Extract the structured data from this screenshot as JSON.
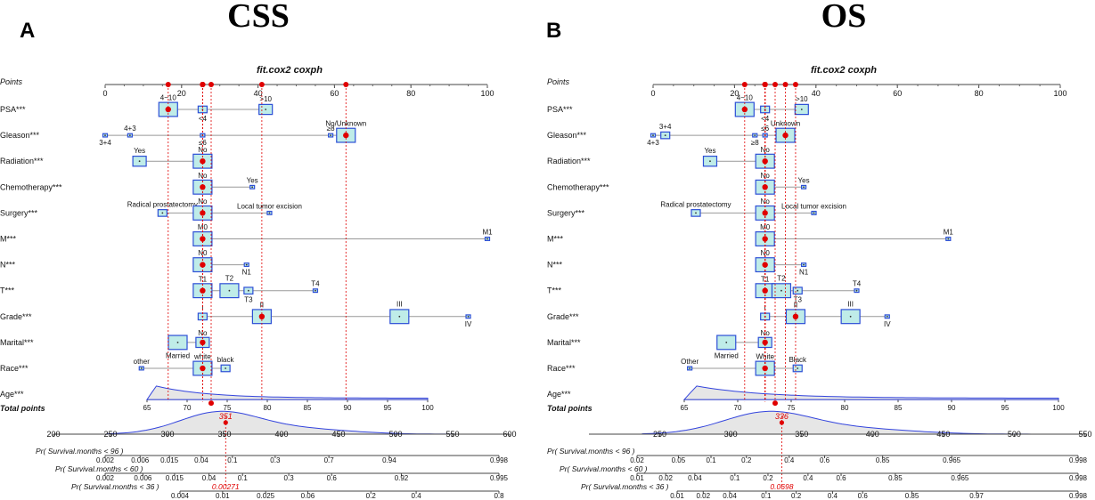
{
  "chart_data": [
    {
      "type": "nomogram",
      "panel": "A",
      "title": "CSS",
      "subtitle": "fit.cox2 coxph",
      "points_label": "Points",
      "points_ticks": [
        "0",
        "20",
        "40",
        "60",
        "80",
        "100"
      ],
      "points_max": 100,
      "total_label": "Total points",
      "total_ticks": [
        "200",
        "250",
        "300",
        "350",
        "400",
        "450",
        "500",
        "550",
        "600"
      ],
      "total_range": [
        200,
        600
      ],
      "total_value": 351,
      "total_value_label": "351",
      "prob_value_label": "0.00271",
      "probability_axes": [
        {
          "label": "Pr( Survival.months < 96 )",
          "ticks": [
            "0.002",
            "0.006",
            "0.015",
            "0.04",
            "0.1",
            "0.3",
            "0.7",
            "0.94",
            "0.998"
          ]
        },
        {
          "label": "Pr( Survival.months < 60 )",
          "ticks": [
            "0.002",
            "0.006",
            "0.015",
            "0.04",
            "0.1",
            "0.3",
            "0.6",
            "0.92",
            "0.995"
          ]
        },
        {
          "label": "Pr( Survival.months < 36 )",
          "ticks": [
            "0.004",
            "0.01",
            "0.025",
            "0.06",
            "0.2",
            "0.4",
            "0.8"
          ]
        }
      ],
      "variables": [
        {
          "name": "PSA***",
          "levels": [
            {
              "label": "4~10",
              "points": 16.5,
              "size": "large",
              "selected": true
            },
            {
              "label": "<4",
              "points": 25.5,
              "size": "small"
            },
            {
              "label": ">10",
              "points": 42,
              "size": "medium"
            }
          ]
        },
        {
          "name": "Gleason***",
          "levels": [
            {
              "label": "3+4",
              "points": 0,
              "size": "tiny"
            },
            {
              "label": "4+3",
              "points": 6.5,
              "size": "tiny"
            },
            {
              "label": "≤6",
              "points": 25.5,
              "size": "tiny"
            },
            {
              "label": "≥8",
              "points": 59,
              "size": "tiny"
            },
            {
              "label": "No/Unknown",
              "points": 63,
              "size": "large",
              "selected": true
            }
          ]
        },
        {
          "name": "Radiation***",
          "levels": [
            {
              "label": "Yes",
              "points": 9,
              "size": "medium"
            },
            {
              "label": "No",
              "points": 25.5,
              "size": "large",
              "selected": true
            }
          ]
        },
        {
          "name": "Chemotherapy***",
          "levels": [
            {
              "label": "No",
              "points": 25.5,
              "size": "large",
              "selected": true
            },
            {
              "label": "Yes",
              "points": 38.5,
              "size": "tiny"
            }
          ]
        },
        {
          "name": "Surgery***",
          "levels": [
            {
              "label": "Radical prostatectomy",
              "points": 15,
              "size": "small"
            },
            {
              "label": "No",
              "points": 25.5,
              "size": "large",
              "selected": true
            },
            {
              "label": "Local tumor excision",
              "points": 43,
              "size": "tiny"
            }
          ]
        },
        {
          "name": "M***",
          "levels": [
            {
              "label": "M0",
              "points": 25.5,
              "size": "large",
              "selected": true
            },
            {
              "label": "M1",
              "points": 100,
              "size": "tiny"
            }
          ]
        },
        {
          "name": "N***",
          "levels": [
            {
              "label": "N0",
              "points": 25.5,
              "size": "large",
              "selected": true
            },
            {
              "label": "N1",
              "points": 37,
              "size": "tiny"
            }
          ]
        },
        {
          "name": "T***",
          "levels": [
            {
              "label": "T1",
              "points": 25.5,
              "size": "large",
              "selected": true
            },
            {
              "label": "T2",
              "points": 32.5,
              "size": "large"
            },
            {
              "label": "T3",
              "points": 37.5,
              "size": "small"
            },
            {
              "label": "T4",
              "points": 55,
              "size": "tiny"
            }
          ]
        },
        {
          "name": "Grade***",
          "levels": [
            {
              "label": "I",
              "points": 25.5,
              "size": "small"
            },
            {
              "label": "II",
              "points": 41,
              "size": "large",
              "selected": true
            },
            {
              "label": "III",
              "points": 77,
              "size": "large"
            },
            {
              "label": "IV",
              "points": 95,
              "size": "tiny"
            }
          ]
        },
        {
          "name": "Marital***",
          "levels": [
            {
              "label": "Married",
              "points": 19,
              "size": "large"
            },
            {
              "label": "No",
              "points": 25.5,
              "size": "medium",
              "selected": true
            }
          ]
        },
        {
          "name": "Race***",
          "levels": [
            {
              "label": "other",
              "points": 9.5,
              "size": "tiny"
            },
            {
              "label": "white",
              "points": 25.5,
              "size": "large",
              "selected": true
            },
            {
              "label": "black",
              "points": 31.5,
              "size": "small"
            }
          ]
        }
      ],
      "age": {
        "name": "Age***",
        "ticks": [
          "65",
          "70",
          "75",
          "80",
          "85",
          "90",
          "95",
          "100"
        ],
        "range": [
          65,
          100
        ],
        "points_at_min": 10.5,
        "points_at_max": 85,
        "value": 73
      }
    },
    {
      "type": "nomogram",
      "panel": "B",
      "title": "OS",
      "subtitle": "fit.cox2 coxph",
      "points_label": "Points",
      "points_ticks": [
        "0",
        "20",
        "40",
        "60",
        "80",
        "100"
      ],
      "points_max": 100,
      "total_label": "Total points",
      "total_ticks": [
        "250",
        "300",
        "350",
        "400",
        "450",
        "500",
        "550"
      ],
      "total_range": [
        200,
        550
      ],
      "total_value": 336,
      "total_value_label": "336",
      "prob_value_label": "0.0698",
      "probability_axes": [
        {
          "label": "Pr( Survival.months < 96 )",
          "ticks": [
            "0.02",
            "0.05",
            "0.1",
            "0.2",
            "0.4",
            "0.6",
            "0.85",
            "0.965",
            "0.998"
          ]
        },
        {
          "label": "Pr( Survival.months < 60 )",
          "ticks": [
            "0.01",
            "0.02",
            "0.04",
            "0.1",
            "0.2",
            "0.4",
            "0.6",
            "0.85",
            "0.965",
            "0.998"
          ]
        },
        {
          "label": "Pr( Survival.months < 36 )",
          "ticks": [
            "0.01",
            "0.02",
            "0.04",
            "0.1",
            "0.2",
            "0.4",
            "0.6",
            "0.85",
            "0.97",
            "0.998"
          ]
        }
      ],
      "variables": [
        {
          "name": "PSA***",
          "levels": [
            {
              "label": "4~10",
              "points": 22.5,
              "size": "large",
              "selected": true
            },
            {
              "label": "<4",
              "points": 27.5,
              "size": "small"
            },
            {
              "label": ">10",
              "points": 36.5,
              "size": "medium"
            }
          ]
        },
        {
          "name": "Gleason***",
          "levels": [
            {
              "label": "4+3",
              "points": 0,
              "size": "tiny"
            },
            {
              "label": "3+4",
              "points": 3,
              "size": "small"
            },
            {
              "label": "≥8",
              "points": 25,
              "size": "tiny"
            },
            {
              "label": "≤6",
              "points": 27.5,
              "size": "tiny"
            },
            {
              "label": "Unknown",
              "points": 32.5,
              "size": "large",
              "selected": true
            }
          ]
        },
        {
          "name": "Radiation***",
          "levels": [
            {
              "label": "Yes",
              "points": 14,
              "size": "medium"
            },
            {
              "label": "No",
              "points": 27.5,
              "size": "large",
              "selected": true
            }
          ]
        },
        {
          "name": "Chemotherapy***",
          "levels": [
            {
              "label": "No",
              "points": 27.5,
              "size": "large",
              "selected": true
            },
            {
              "label": "Yes",
              "points": 37,
              "size": "tiny"
            }
          ]
        },
        {
          "name": "Surgery***",
          "levels": [
            {
              "label": "Radical prostatectomy",
              "points": 10.5,
              "size": "small"
            },
            {
              "label": "No",
              "points": 27.5,
              "size": "large",
              "selected": true
            },
            {
              "label": "Local tumor excision",
              "points": 39.5,
              "size": "tiny"
            }
          ]
        },
        {
          "name": "M***",
          "levels": [
            {
              "label": "M0",
              "points": 27.5,
              "size": "large",
              "selected": true
            },
            {
              "label": "M1",
              "points": 72.5,
              "size": "tiny"
            }
          ]
        },
        {
          "name": "N***",
          "levels": [
            {
              "label": "N0",
              "points": 27.5,
              "size": "large",
              "selected": true
            },
            {
              "label": "N1",
              "points": 37,
              "size": "tiny"
            }
          ]
        },
        {
          "name": "T***",
          "levels": [
            {
              "label": "T1",
              "points": 27.5,
              "size": "large",
              "selected": true
            },
            {
              "label": "T2",
              "points": 31.5,
              "size": "large"
            },
            {
              "label": "T3",
              "points": 35.5,
              "size": "small"
            },
            {
              "label": "T4",
              "points": 50,
              "size": "tiny"
            }
          ]
        },
        {
          "name": "Grade***",
          "levels": [
            {
              "label": "I",
              "points": 27.5,
              "size": "small"
            },
            {
              "label": "II",
              "points": 35,
              "size": "large",
              "selected": true
            },
            {
              "label": "III",
              "points": 48.5,
              "size": "large"
            },
            {
              "label": "IV",
              "points": 57.5,
              "size": "tiny"
            }
          ]
        },
        {
          "name": "Marital***",
          "levels": [
            {
              "label": "Married",
              "points": 18,
              "size": "large"
            },
            {
              "label": "No",
              "points": 27.5,
              "size": "medium",
              "selected": true
            }
          ]
        },
        {
          "name": "Race***",
          "levels": [
            {
              "label": "Other",
              "points": 9,
              "size": "tiny"
            },
            {
              "label": "White",
              "points": 27.5,
              "size": "large",
              "selected": true
            },
            {
              "label": "Black",
              "points": 35.5,
              "size": "small"
            }
          ]
        }
      ],
      "age": {
        "name": "Age***",
        "ticks": [
          "65",
          "70",
          "75",
          "80",
          "85",
          "90",
          "95",
          "100"
        ],
        "range": [
          65,
          100
        ],
        "points_at_min": 7.5,
        "points_at_max": 100,
        "value": 73.5
      }
    }
  ]
}
